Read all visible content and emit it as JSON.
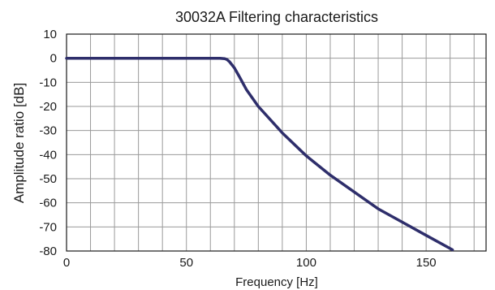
{
  "chart_data": {
    "type": "line",
    "title": "30032A Filtering characteristics",
    "xlabel": "Frequency [Hz]",
    "ylabel": "Amplitude ratio [dB]",
    "xlim": [
      0,
      175
    ],
    "ylim": [
      -80,
      10
    ],
    "x_grid_step": 10,
    "y_grid_step": 10,
    "x_tick_labels": [
      "0",
      "50",
      "100",
      "150"
    ],
    "x_tick_values": [
      0,
      50,
      100,
      150
    ],
    "y_tick_labels": [
      "10",
      "0",
      "-10",
      "-20",
      "-30",
      "-40",
      "-50",
      "-60",
      "-70",
      "-80"
    ],
    "y_tick_values": [
      10,
      0,
      -10,
      -20,
      -30,
      -40,
      -50,
      -60,
      -70,
      -80
    ],
    "grid": true,
    "line_color": "#2e2e6b",
    "series": [
      {
        "x": [
          0,
          60,
          64,
          66,
          67,
          68,
          70,
          72,
          75,
          80,
          90,
          100,
          110,
          120,
          130,
          140,
          150,
          161
        ],
        "values": [
          0,
          0,
          0,
          -0.2,
          -0.6,
          -1.5,
          -4,
          -7.5,
          -13,
          -20,
          -31,
          -40.5,
          -48.5,
          -55.5,
          -62.5,
          -68,
          -73.5,
          -79.5
        ]
      }
    ]
  }
}
